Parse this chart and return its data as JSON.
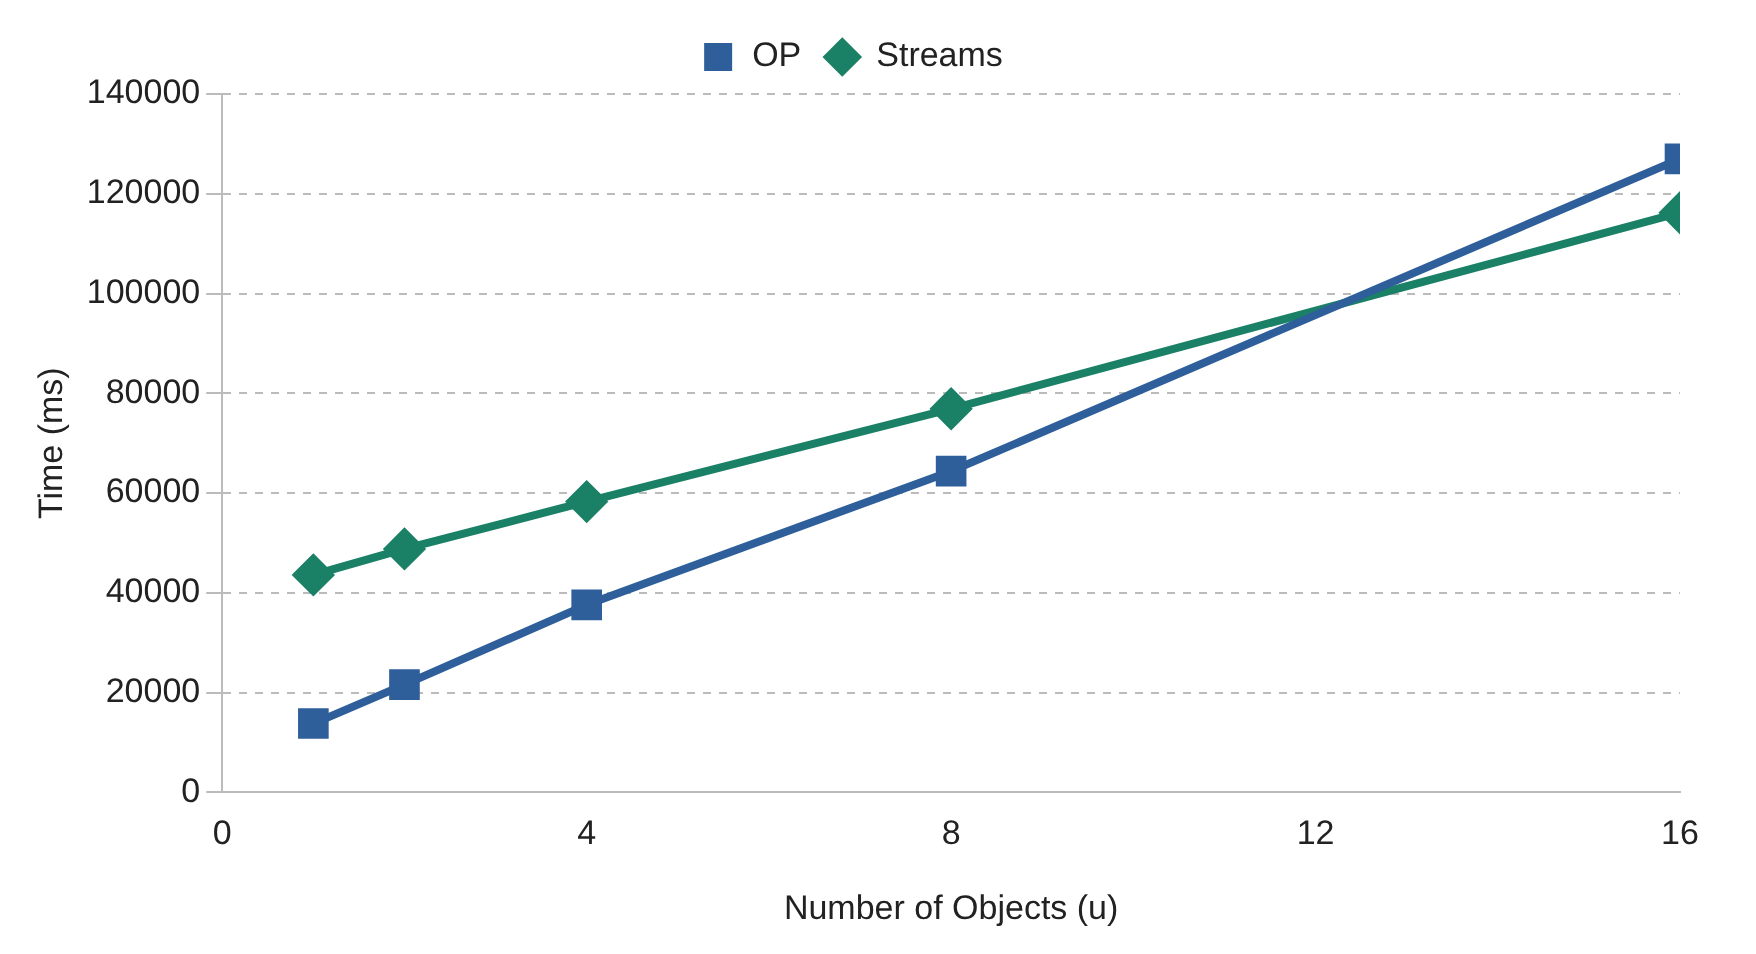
{
  "chart_data": {
    "type": "line",
    "xlabel": "Number of Objects (u)",
    "ylabel": "Time (ms)",
    "x": [
      1,
      2,
      4,
      8,
      16
    ],
    "series": [
      {
        "name": "OP",
        "color": "#2e5f9a",
        "values": [
          13800,
          21600,
          37600,
          64400,
          127000
        ],
        "marker": "square"
      },
      {
        "name": "Streams",
        "color": "#1a8066",
        "values": [
          43600,
          48800,
          58300,
          76900,
          116200
        ],
        "marker": "diamond"
      }
    ],
    "xlim": [
      0,
      16
    ],
    "xticks": [
      0,
      4,
      8,
      12,
      16
    ],
    "ylim": [
      0,
      140000
    ],
    "yticks": [
      0,
      20000,
      40000,
      60000,
      80000,
      100000,
      120000,
      140000
    ],
    "grid": "y",
    "legend": "top",
    "line_style": "solid"
  }
}
